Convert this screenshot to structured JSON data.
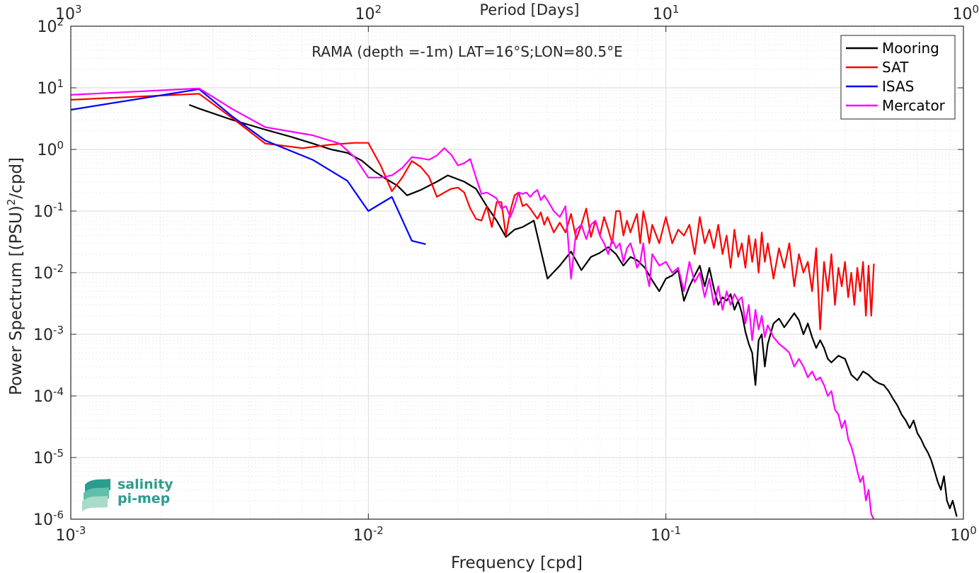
{
  "chart_data": {
    "type": "line",
    "title": "RAMA (depth =-1m) LAT=16°S;LON=80.5°E",
    "xlabel": "Frequency [cpd]",
    "ylabel_main": "Power Spectrum [(PSU)",
    "ylabel_sup": "2",
    "ylabel_end": "/cpd]",
    "top_xlabel": "Period [Days]",
    "xscale": "log",
    "yscale": "log",
    "xlim": [
      0.001,
      1
    ],
    "ylim": [
      1e-06,
      100
    ],
    "grid": true,
    "legend_position": "top-right",
    "x_ticks": [
      0.001,
      0.01,
      0.1,
      1
    ],
    "x_tick_labels": [
      {
        "base": "10",
        "exp": "-3"
      },
      {
        "base": "10",
        "exp": "-2"
      },
      {
        "base": "10",
        "exp": "-1"
      },
      {
        "base": "10",
        "exp": "0"
      }
    ],
    "y_ticks": [
      1e-06,
      1e-05,
      0.0001,
      0.001,
      0.01,
      0.1,
      1,
      10,
      100
    ],
    "y_tick_labels": [
      {
        "base": "10",
        "exp": "-6"
      },
      {
        "base": "10",
        "exp": "-5"
      },
      {
        "base": "10",
        "exp": "-4"
      },
      {
        "base": "10",
        "exp": "-3"
      },
      {
        "base": "10",
        "exp": "-2"
      },
      {
        "base": "10",
        "exp": "-1"
      },
      {
        "base": "10",
        "exp": "0"
      },
      {
        "base": "10",
        "exp": "1"
      },
      {
        "base": "10",
        "exp": "2"
      }
    ],
    "top_ticks": [
      1000,
      100,
      10,
      1
    ],
    "top_tick_labels": [
      {
        "base": "10",
        "exp": "3"
      },
      {
        "base": "10",
        "exp": "2"
      },
      {
        "base": "10",
        "exp": "1"
      },
      {
        "base": "10",
        "exp": "0"
      }
    ],
    "series": [
      {
        "name": "Mooring",
        "color": "#000000",
        "x": [
          0.0025,
          0.0027,
          0.0035,
          0.0045,
          0.0055,
          0.0065,
          0.0075,
          0.0085,
          0.0095,
          0.0105,
          0.0115,
          0.0125,
          0.0135,
          0.015,
          0.017,
          0.0185,
          0.021,
          0.023,
          0.025,
          0.027,
          0.029,
          0.031,
          0.033,
          0.036,
          0.04,
          0.044,
          0.048,
          0.052,
          0.056,
          0.06,
          0.064,
          0.068,
          0.072,
          0.076,
          0.08,
          0.085,
          0.09,
          0.095,
          0.1,
          0.105,
          0.11,
          0.115,
          0.12,
          0.125,
          0.13,
          0.135,
          0.14,
          0.145,
          0.15,
          0.155,
          0.16,
          0.165,
          0.17,
          0.175,
          0.18,
          0.185,
          0.19,
          0.195,
          0.2,
          0.205,
          0.21,
          0.215,
          0.22,
          0.23,
          0.24,
          0.25,
          0.26,
          0.27,
          0.28,
          0.29,
          0.3,
          0.31,
          0.32,
          0.33,
          0.34,
          0.35,
          0.36,
          0.38,
          0.4,
          0.42,
          0.44,
          0.46,
          0.48,
          0.5,
          0.52,
          0.54,
          0.56,
          0.58,
          0.6,
          0.62,
          0.64,
          0.66,
          0.68,
          0.7,
          0.72,
          0.74,
          0.76,
          0.78,
          0.8,
          0.82,
          0.84,
          0.86,
          0.88,
          0.9,
          0.92,
          0.95
        ],
        "y": [
          5.3,
          4.6,
          3.0,
          2.1,
          1.6,
          1.25,
          1.0,
          0.88,
          0.66,
          0.44,
          0.33,
          0.26,
          0.18,
          0.22,
          0.3,
          0.38,
          0.3,
          0.23,
          0.12,
          0.07,
          0.038,
          0.05,
          0.055,
          0.07,
          0.008,
          0.013,
          0.022,
          0.011,
          0.018,
          0.021,
          0.026,
          0.02,
          0.013,
          0.018,
          0.016,
          0.012,
          0.0075,
          0.005,
          0.008,
          0.009,
          0.011,
          0.0035,
          0.006,
          0.009,
          0.013,
          0.006,
          0.012,
          0.0055,
          0.003,
          0.004,
          0.0035,
          0.0045,
          0.0025,
          0.0035,
          0.0022,
          0.0011,
          0.0007,
          0.0005,
          0.00015,
          0.0008,
          0.001,
          0.0003,
          0.0007,
          0.0015,
          0.0018,
          0.0013,
          0.0017,
          0.0022,
          0.0017,
          0.001,
          0.0015,
          0.0009,
          0.0006,
          0.0008,
          0.0006,
          0.0004,
          0.00035,
          0.00045,
          0.0004,
          0.00022,
          0.00018,
          0.00025,
          0.00022,
          0.00018,
          0.00016,
          0.00015,
          0.00012,
          9e-05,
          7e-05,
          5e-05,
          4e-05,
          3e-05,
          4e-05,
          2.5e-05,
          2e-05,
          1.5e-05,
          1.2e-05,
          9e-06,
          6e-06,
          4e-06,
          3e-06,
          5e-06,
          2e-06,
          1.5e-06,
          2e-06,
          1.1e-06
        ]
      },
      {
        "name": "SAT",
        "color": "#ff0000",
        "x": [
          0.001,
          0.0027,
          0.0035,
          0.0045,
          0.006,
          0.0075,
          0.009,
          0.01,
          0.011,
          0.012,
          0.013,
          0.014,
          0.015,
          0.016,
          0.017,
          0.018,
          0.019,
          0.02,
          0.021,
          0.022,
          0.023,
          0.024,
          0.025,
          0.026,
          0.027,
          0.028,
          0.029,
          0.03,
          0.031,
          0.032,
          0.033,
          0.034,
          0.035,
          0.036,
          0.037,
          0.038,
          0.039,
          0.04,
          0.042,
          0.044,
          0.046,
          0.048,
          0.05,
          0.052,
          0.054,
          0.056,
          0.058,
          0.06,
          0.062,
          0.064,
          0.066,
          0.068,
          0.07,
          0.072,
          0.074,
          0.076,
          0.078,
          0.08,
          0.082,
          0.084,
          0.086,
          0.088,
          0.09,
          0.095,
          0.1,
          0.105,
          0.11,
          0.115,
          0.12,
          0.125,
          0.13,
          0.135,
          0.14,
          0.145,
          0.15,
          0.155,
          0.16,
          0.165,
          0.17,
          0.175,
          0.18,
          0.185,
          0.19,
          0.195,
          0.2,
          0.205,
          0.21,
          0.215,
          0.22,
          0.23,
          0.24,
          0.25,
          0.26,
          0.27,
          0.28,
          0.29,
          0.3,
          0.31,
          0.32,
          0.33,
          0.34,
          0.35,
          0.36,
          0.37,
          0.38,
          0.39,
          0.4,
          0.41,
          0.42,
          0.43,
          0.44,
          0.45,
          0.46,
          0.47,
          0.48,
          0.49,
          0.5
        ],
        "y": [
          6.4,
          8.0,
          3.2,
          1.25,
          1.05,
          1.2,
          1.28,
          1.28,
          0.55,
          0.21,
          0.35,
          0.65,
          0.52,
          0.36,
          0.17,
          0.2,
          0.23,
          0.24,
          0.2,
          0.11,
          0.075,
          0.07,
          0.12,
          0.055,
          0.14,
          0.14,
          0.04,
          0.1,
          0.18,
          0.2,
          0.12,
          0.13,
          0.11,
          0.09,
          0.075,
          0.095,
          0.06,
          0.08,
          0.045,
          0.065,
          0.045,
          0.09,
          0.035,
          0.06,
          0.11,
          0.038,
          0.07,
          0.04,
          0.08,
          0.05,
          0.03,
          0.1,
          0.1,
          0.04,
          0.07,
          0.045,
          0.065,
          0.09,
          0.03,
          0.1,
          0.06,
          0.03,
          0.06,
          0.03,
          0.08,
          0.03,
          0.05,
          0.04,
          0.06,
          0.02,
          0.08,
          0.03,
          0.05,
          0.025,
          0.06,
          0.02,
          0.04,
          0.012,
          0.05,
          0.018,
          0.03,
          0.012,
          0.04,
          0.015,
          0.035,
          0.01,
          0.045,
          0.015,
          0.03,
          0.008,
          0.025,
          0.012,
          0.03,
          0.006,
          0.02,
          0.01,
          0.015,
          0.005,
          0.025,
          0.0012,
          0.015,
          0.005,
          0.02,
          0.003,
          0.012,
          0.006,
          0.015,
          0.004,
          0.01,
          0.003,
          0.012,
          0.005,
          0.015,
          0.002,
          0.013,
          0.002,
          0.014
        ]
      },
      {
        "name": "ISAS",
        "color": "#0000ff",
        "x": [
          0.001,
          0.0027,
          0.0035,
          0.0045,
          0.0065,
          0.0085,
          0.01,
          0.012,
          0.014,
          0.0156
        ],
        "y": [
          4.4,
          9.5,
          3.4,
          1.4,
          0.68,
          0.31,
          0.1,
          0.17,
          0.033,
          0.029
        ]
      },
      {
        "name": "Mercator",
        "color": "#ff00ff",
        "x": [
          0.001,
          0.0027,
          0.0035,
          0.0045,
          0.0065,
          0.008,
          0.009,
          0.01,
          0.011,
          0.012,
          0.013,
          0.014,
          0.015,
          0.016,
          0.017,
          0.018,
          0.019,
          0.02,
          0.021,
          0.022,
          0.023,
          0.024,
          0.025,
          0.026,
          0.027,
          0.028,
          0.029,
          0.03,
          0.031,
          0.032,
          0.033,
          0.034,
          0.035,
          0.036,
          0.037,
          0.038,
          0.039,
          0.04,
          0.042,
          0.044,
          0.046,
          0.048,
          0.05,
          0.052,
          0.054,
          0.056,
          0.058,
          0.06,
          0.062,
          0.064,
          0.066,
          0.068,
          0.07,
          0.072,
          0.074,
          0.076,
          0.078,
          0.08,
          0.082,
          0.084,
          0.086,
          0.088,
          0.09,
          0.095,
          0.1,
          0.105,
          0.11,
          0.115,
          0.12,
          0.125,
          0.13,
          0.135,
          0.14,
          0.145,
          0.15,
          0.155,
          0.16,
          0.165,
          0.17,
          0.175,
          0.18,
          0.185,
          0.19,
          0.195,
          0.2,
          0.205,
          0.21,
          0.215,
          0.22,
          0.23,
          0.24,
          0.25,
          0.26,
          0.27,
          0.28,
          0.29,
          0.3,
          0.31,
          0.32,
          0.33,
          0.34,
          0.35,
          0.36,
          0.37,
          0.38,
          0.39,
          0.4,
          0.41,
          0.42,
          0.43,
          0.44,
          0.45,
          0.46,
          0.47,
          0.48,
          0.49,
          0.5
        ],
        "y": [
          7.7,
          9.8,
          4.5,
          2.3,
          1.7,
          1.25,
          0.75,
          0.35,
          0.35,
          0.38,
          0.5,
          0.75,
          0.72,
          0.68,
          0.8,
          1.05,
          0.82,
          0.55,
          0.6,
          0.7,
          0.35,
          0.19,
          0.2,
          0.18,
          0.16,
          0.11,
          0.12,
          0.08,
          0.12,
          0.2,
          0.19,
          0.2,
          0.17,
          0.2,
          0.22,
          0.15,
          0.18,
          0.15,
          0.1,
          0.08,
          0.12,
          0.008,
          0.05,
          0.06,
          0.035,
          0.06,
          0.07,
          0.04,
          0.03,
          0.02,
          0.035,
          0.025,
          0.03,
          0.015,
          0.025,
          0.03,
          0.02,
          0.012,
          0.015,
          0.03,
          0.01,
          0.006,
          0.02,
          0.013,
          0.015,
          0.01,
          0.012,
          0.005,
          0.015,
          0.007,
          0.01,
          0.004,
          0.008,
          0.003,
          0.006,
          0.0025,
          0.005,
          0.003,
          0.0045,
          0.0035,
          0.004,
          0.0015,
          0.003,
          0.0008,
          0.0025,
          0.0012,
          0.002,
          0.0009,
          0.0014,
          0.0009,
          0.0007,
          0.0006,
          0.0005,
          0.0003,
          0.0004,
          0.0003,
          0.0002,
          0.00025,
          0.00018,
          0.0002,
          0.00015,
          0.0001,
          0.00012,
          6e-05,
          5e-05,
          3e-05,
          4e-05,
          2e-05,
          1.5e-05,
          1e-05,
          6e-06,
          4e-06,
          5e-06,
          2e-06,
          3e-06,
          1.2e-06,
          1e-06
        ]
      }
    ]
  },
  "logo": {
    "line1": "salinity",
    "line2": "pi-mep"
  },
  "colors": {
    "axis": "#262626",
    "grid_major": "#d9d9d9",
    "grid_minor": "#ececec",
    "logo": "#2a9d8f"
  }
}
